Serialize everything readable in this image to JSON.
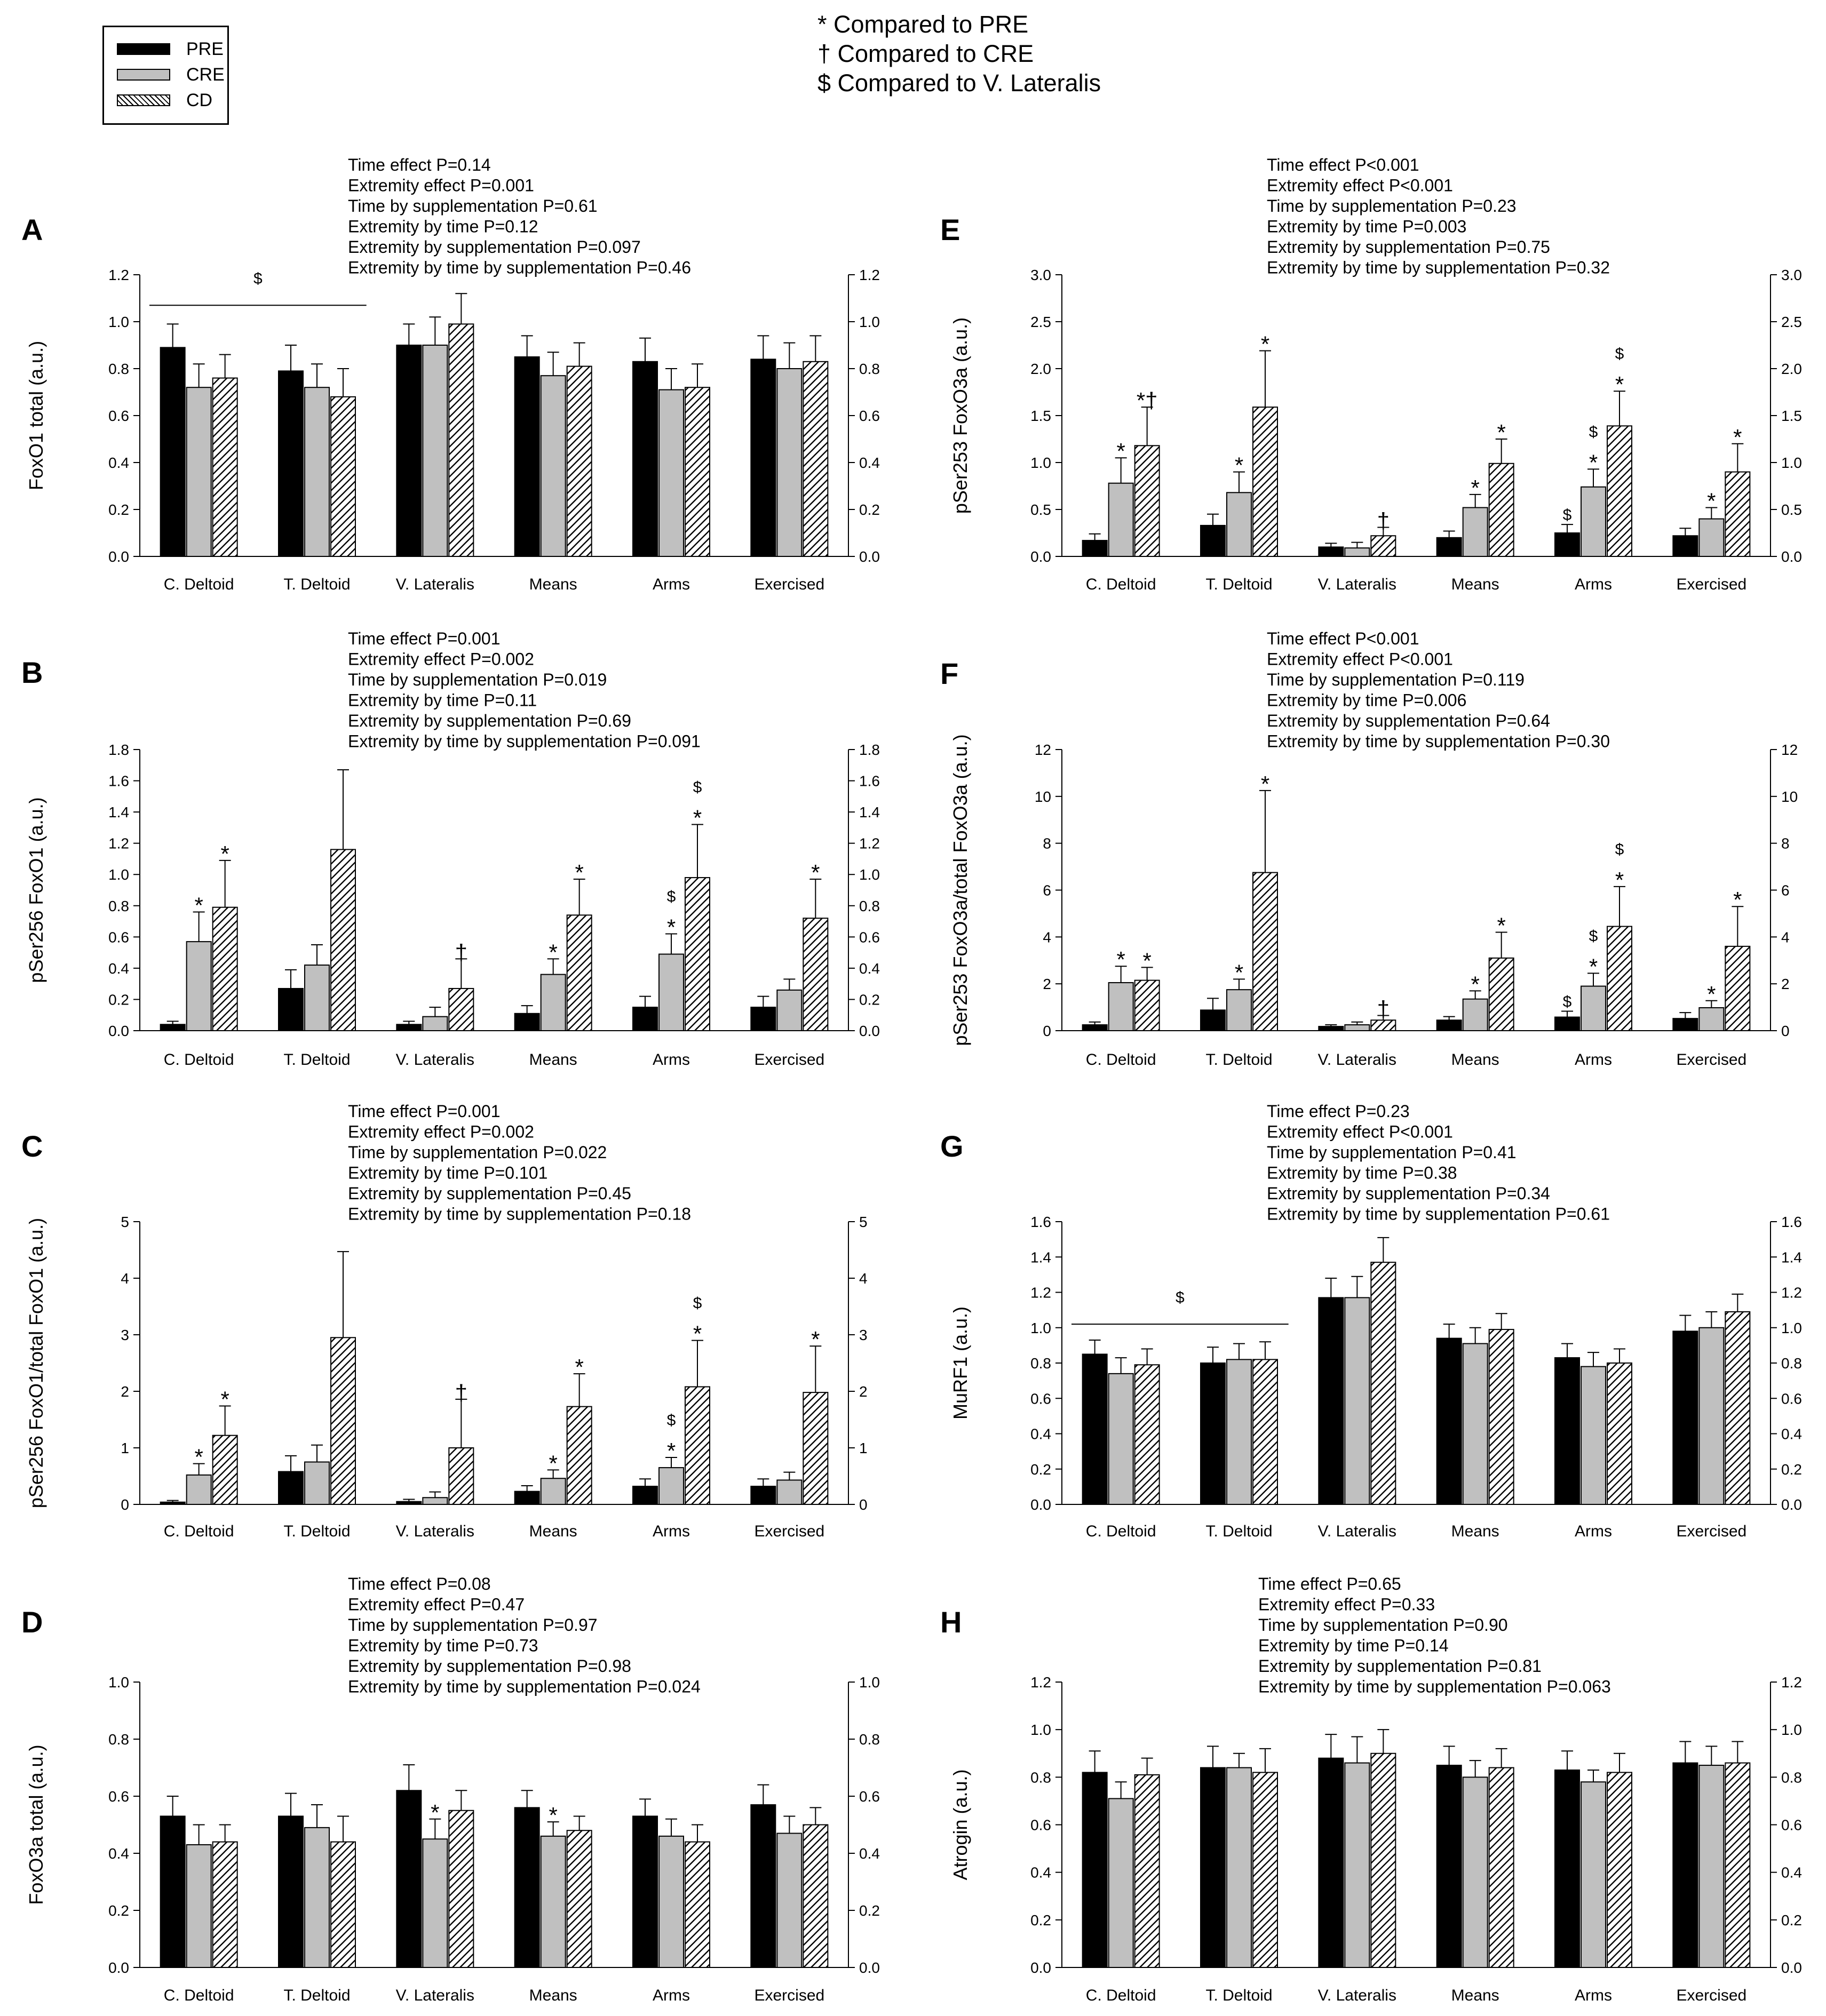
{
  "legend": {
    "items": [
      {
        "label": "PRE",
        "color": "#000000"
      },
      {
        "label": "CRE",
        "color": "#c0c0c0"
      },
      {
        "label": "CD",
        "color": "hatched"
      }
    ]
  },
  "notes": [
    "* Compared to PRE",
    "† Compared to CRE",
    "$ Compared to V. Lateralis"
  ],
  "chart_data": [
    {
      "panel": "A",
      "type": "bar",
      "ylabel": "FoxO1 total (a.u.)",
      "ylim": [
        0,
        1.2
      ],
      "ticks": [
        "0.0",
        "0.2",
        "0.4",
        "0.6",
        "0.8",
        "1.0",
        "1.2"
      ],
      "categories": [
        "C. Deltoid",
        "T. Deltoid",
        "V. Lateralis",
        "Means",
        "Arms",
        "Exercised"
      ],
      "stats": [
        "Time effect P=0.14",
        "Extremity effect P=0.001",
        "Time by supplementation P=0.61",
        "Extremity by time P=0.12",
        "Extremity by supplementation P=0.097",
        "Extremity by time by supplementation P=0.46"
      ],
      "series": [
        {
          "name": "PRE",
          "values": [
            0.89,
            0.79,
            0.9,
            0.85,
            0.83,
            0.84
          ],
          "errors": [
            0.1,
            0.11,
            0.09,
            0.09,
            0.1,
            0.1
          ]
        },
        {
          "name": "CRE",
          "values": [
            0.72,
            0.72,
            0.9,
            0.77,
            0.71,
            0.8
          ],
          "errors": [
            0.1,
            0.1,
            0.12,
            0.1,
            0.09,
            0.11
          ]
        },
        {
          "name": "CD",
          "values": [
            0.76,
            0.68,
            0.99,
            0.81,
            0.72,
            0.83
          ],
          "errors": [
            0.1,
            0.12,
            0.13,
            0.1,
            0.1,
            0.11
          ]
        }
      ],
      "annotations": [],
      "bracket": {
        "from": 0,
        "to": 1,
        "label": "$",
        "level": 1.07
      }
    },
    {
      "panel": "B",
      "type": "bar",
      "ylabel": "pSer256 FoxO1 (a.u.)",
      "ylim": [
        0,
        1.8
      ],
      "ticks": [
        "0.0",
        "0.2",
        "0.4",
        "0.6",
        "0.8",
        "1.0",
        "1.2",
        "1.4",
        "1.6",
        "1.8"
      ],
      "categories": [
        "C. Deltoid",
        "T. Deltoid",
        "V. Lateralis",
        "Means",
        "Arms",
        "Exercised"
      ],
      "stats": [
        "Time effect P=0.001",
        "Extremity effect P=0.002",
        "Time by supplementation P=0.019",
        "Extremity by time P=0.11",
        "Extremity by supplementation P=0.69",
        "Extremity by time by supplementation P=0.091"
      ],
      "series": [
        {
          "name": "PRE",
          "values": [
            0.04,
            0.27,
            0.04,
            0.11,
            0.15,
            0.15
          ],
          "errors": [
            0.02,
            0.12,
            0.02,
            0.05,
            0.07,
            0.07
          ]
        },
        {
          "name": "CRE",
          "values": [
            0.57,
            0.42,
            0.09,
            0.36,
            0.49,
            0.26
          ],
          "errors": [
            0.19,
            0.13,
            0.06,
            0.1,
            0.13,
            0.07
          ]
        },
        {
          "name": "CD",
          "values": [
            0.79,
            1.16,
            0.27,
            0.74,
            0.98,
            0.72
          ],
          "errors": [
            0.3,
            0.51,
            0.19,
            0.23,
            0.34,
            0.25
          ]
        }
      ],
      "annotations": [
        {
          "cat": 0,
          "series": 1,
          "labels": [
            "*"
          ]
        },
        {
          "cat": 0,
          "series": 2,
          "labels": [
            "*"
          ]
        },
        {
          "cat": 2,
          "series": 2,
          "labels": [
            "†"
          ]
        },
        {
          "cat": 3,
          "series": 1,
          "labels": [
            "*"
          ]
        },
        {
          "cat": 3,
          "series": 2,
          "labels": [
            "*"
          ]
        },
        {
          "cat": 4,
          "series": 1,
          "labels": [
            "*",
            "$"
          ]
        },
        {
          "cat": 4,
          "series": 2,
          "labels": [
            "*",
            "$"
          ]
        },
        {
          "cat": 5,
          "series": 2,
          "labels": [
            "*"
          ]
        }
      ]
    },
    {
      "panel": "C",
      "type": "bar",
      "ylabel": "pSer256 FoxO1/total FoxO1 (a.u.)",
      "ylim": [
        0,
        5
      ],
      "ticks": [
        "0",
        "1",
        "2",
        "3",
        "4",
        "5"
      ],
      "categories": [
        "C. Deltoid",
        "T. Deltoid",
        "V. Lateralis",
        "Means",
        "Arms",
        "Exercised"
      ],
      "stats": [
        "Time effect P=0.001",
        "Extremity effect P=0.002",
        "Time by supplementation P=0.022",
        "Extremity by time P=0.101",
        "Extremity by supplementation P=0.45",
        "Extremity by time by supplementation P=0.18"
      ],
      "series": [
        {
          "name": "PRE",
          "values": [
            0.04,
            0.58,
            0.05,
            0.23,
            0.32,
            0.32
          ],
          "errors": [
            0.03,
            0.28,
            0.04,
            0.1,
            0.13,
            0.13
          ]
        },
        {
          "name": "CRE",
          "values": [
            0.52,
            0.75,
            0.12,
            0.46,
            0.65,
            0.43
          ],
          "errors": [
            0.2,
            0.3,
            0.1,
            0.15,
            0.18,
            0.14
          ]
        },
        {
          "name": "CD",
          "values": [
            1.22,
            2.95,
            1.0,
            1.73,
            2.08,
            1.98
          ],
          "errors": [
            0.52,
            1.52,
            0.86,
            0.58,
            0.82,
            0.82
          ]
        }
      ],
      "annotations": [
        {
          "cat": 0,
          "series": 1,
          "labels": [
            "*"
          ]
        },
        {
          "cat": 0,
          "series": 2,
          "labels": [
            "*"
          ]
        },
        {
          "cat": 2,
          "series": 2,
          "labels": [
            "†"
          ]
        },
        {
          "cat": 3,
          "series": 1,
          "labels": [
            "*"
          ]
        },
        {
          "cat": 3,
          "series": 2,
          "labels": [
            "*"
          ]
        },
        {
          "cat": 4,
          "series": 1,
          "labels": [
            "*",
            "$"
          ]
        },
        {
          "cat": 4,
          "series": 2,
          "labels": [
            "*",
            "$"
          ]
        },
        {
          "cat": 5,
          "series": 2,
          "labels": [
            "*"
          ]
        }
      ]
    },
    {
      "panel": "D",
      "type": "bar",
      "ylabel": "FoxO3a total (a.u.)",
      "ylim": [
        0,
        1.0
      ],
      "ticks": [
        "0.0",
        "0.2",
        "0.4",
        "0.6",
        "0.8",
        "1.0"
      ],
      "categories": [
        "C. Deltoid",
        "T. Deltoid",
        "V. Lateralis",
        "Means",
        "Arms",
        "Exercised"
      ],
      "stats": [
        "Time effect P=0.08",
        "Extremity effect P=0.47",
        "Time by supplementation P=0.97",
        "Extremity by time P=0.73",
        "Extremity by supplementation P=0.98",
        "Extremity by time by supplementation P=0.024"
      ],
      "series": [
        {
          "name": "PRE",
          "values": [
            0.53,
            0.53,
            0.62,
            0.56,
            0.53,
            0.57
          ],
          "errors": [
            0.07,
            0.08,
            0.09,
            0.06,
            0.06,
            0.07
          ]
        },
        {
          "name": "CRE",
          "values": [
            0.43,
            0.49,
            0.45,
            0.46,
            0.46,
            0.47
          ],
          "errors": [
            0.07,
            0.08,
            0.07,
            0.05,
            0.06,
            0.06
          ]
        },
        {
          "name": "CD",
          "values": [
            0.44,
            0.44,
            0.55,
            0.48,
            0.44,
            0.5
          ],
          "errors": [
            0.06,
            0.09,
            0.07,
            0.05,
            0.06,
            0.06
          ]
        }
      ],
      "annotations": [
        {
          "cat": 2,
          "series": 1,
          "labels": [
            "*"
          ]
        },
        {
          "cat": 3,
          "series": 1,
          "labels": [
            "*"
          ]
        }
      ]
    },
    {
      "panel": "E",
      "type": "bar",
      "ylabel": "pSer253 FoxO3a (a.u.)",
      "ylim": [
        0,
        3.0
      ],
      "ticks": [
        "0.0",
        "0.5",
        "1.0",
        "1.5",
        "2.0",
        "2.5",
        "3.0"
      ],
      "categories": [
        "C. Deltoid",
        "T. Deltoid",
        "V. Lateralis",
        "Means",
        "Arms",
        "Exercised"
      ],
      "stats": [
        "Time effect P<0.001",
        "Extremity effect P<0.001",
        "Time by supplementation P=0.23",
        "Extremity by time P=0.003",
        "Extremity by supplementation P=0.75",
        "Extremity by time by supplementation P=0.32"
      ],
      "series": [
        {
          "name": "PRE",
          "values": [
            0.17,
            0.33,
            0.1,
            0.2,
            0.25,
            0.22
          ],
          "errors": [
            0.07,
            0.12,
            0.04,
            0.07,
            0.09,
            0.08
          ]
        },
        {
          "name": "CRE",
          "values": [
            0.78,
            0.68,
            0.09,
            0.52,
            0.74,
            0.4
          ],
          "errors": [
            0.27,
            0.22,
            0.06,
            0.14,
            0.19,
            0.12
          ]
        },
        {
          "name": "CD",
          "values": [
            1.18,
            1.59,
            0.22,
            0.99,
            1.39,
            0.9
          ],
          "errors": [
            0.41,
            0.6,
            0.09,
            0.26,
            0.37,
            0.3
          ]
        }
      ],
      "annotations": [
        {
          "cat": 0,
          "series": 1,
          "labels": [
            "*"
          ]
        },
        {
          "cat": 0,
          "series": 2,
          "labels": [
            "*†"
          ]
        },
        {
          "cat": 1,
          "series": 1,
          "labels": [
            "*"
          ]
        },
        {
          "cat": 1,
          "series": 2,
          "labels": [
            "*"
          ]
        },
        {
          "cat": 2,
          "series": 2,
          "labels": [
            "†"
          ]
        },
        {
          "cat": 3,
          "series": 1,
          "labels": [
            "*"
          ]
        },
        {
          "cat": 3,
          "series": 2,
          "labels": [
            "*"
          ]
        },
        {
          "cat": 4,
          "series": 0,
          "labels": [
            "$"
          ]
        },
        {
          "cat": 4,
          "series": 1,
          "labels": [
            "*",
            "$"
          ]
        },
        {
          "cat": 4,
          "series": 2,
          "labels": [
            "*",
            "$"
          ]
        },
        {
          "cat": 5,
          "series": 1,
          "labels": [
            "*"
          ]
        },
        {
          "cat": 5,
          "series": 2,
          "labels": [
            "*"
          ]
        }
      ]
    },
    {
      "panel": "F",
      "type": "bar",
      "ylabel": "pSer253 FoxO3a/total FoxO3a (a.u.)",
      "ylim": [
        0,
        12
      ],
      "ticks": [
        "0",
        "2",
        "4",
        "6",
        "8",
        "10",
        "12"
      ],
      "categories": [
        "C. Deltoid",
        "T. Deltoid",
        "V. Lateralis",
        "Means",
        "Arms",
        "Exercised"
      ],
      "stats": [
        "Time effect P<0.001",
        "Extremity effect P<0.001",
        "Time by supplementation P=0.119",
        "Extremity by time P=0.006",
        "Extremity by supplementation P=0.64",
        "Extremity by time by supplementation P=0.30"
      ],
      "series": [
        {
          "name": "PRE",
          "values": [
            0.25,
            0.88,
            0.18,
            0.45,
            0.58,
            0.52
          ],
          "errors": [
            0.12,
            0.5,
            0.07,
            0.15,
            0.25,
            0.25
          ]
        },
        {
          "name": "CRE",
          "values": [
            2.05,
            1.75,
            0.25,
            1.35,
            1.9,
            0.98
          ],
          "errors": [
            0.7,
            0.45,
            0.12,
            0.35,
            0.55,
            0.3
          ]
        },
        {
          "name": "CD",
          "values": [
            2.15,
            6.75,
            0.45,
            3.1,
            4.45,
            3.6
          ],
          "errors": [
            0.55,
            3.5,
            0.2,
            1.1,
            1.7,
            1.7
          ]
        }
      ],
      "annotations": [
        {
          "cat": 0,
          "series": 1,
          "labels": [
            "*"
          ]
        },
        {
          "cat": 0,
          "series": 2,
          "labels": [
            "*"
          ]
        },
        {
          "cat": 1,
          "series": 1,
          "labels": [
            "*"
          ]
        },
        {
          "cat": 1,
          "series": 2,
          "labels": [
            "*"
          ]
        },
        {
          "cat": 2,
          "series": 2,
          "labels": [
            "†"
          ]
        },
        {
          "cat": 3,
          "series": 1,
          "labels": [
            "*"
          ]
        },
        {
          "cat": 3,
          "series": 2,
          "labels": [
            "*"
          ]
        },
        {
          "cat": 4,
          "series": 0,
          "labels": [
            "$"
          ]
        },
        {
          "cat": 4,
          "series": 1,
          "labels": [
            "*",
            "$"
          ]
        },
        {
          "cat": 4,
          "series": 2,
          "labels": [
            "*",
            "$"
          ]
        },
        {
          "cat": 5,
          "series": 1,
          "labels": [
            "*"
          ]
        },
        {
          "cat": 5,
          "series": 2,
          "labels": [
            "*"
          ]
        }
      ]
    },
    {
      "panel": "G",
      "type": "bar",
      "ylabel": "MuRF1 (a.u.)",
      "ylim": [
        0,
        1.6
      ],
      "ticks": [
        "0.0",
        "0.2",
        "0.4",
        "0.6",
        "0.8",
        "1.0",
        "1.2",
        "1.4",
        "1.6"
      ],
      "categories": [
        "C. Deltoid",
        "T. Deltoid",
        "V. Lateralis",
        "Means",
        "Arms",
        "Exercised"
      ],
      "stats": [
        "Time effect P=0.23",
        "Extremity effect P<0.001",
        "Time by supplementation P=0.41",
        "Extremity by time P=0.38",
        "Extremity by supplementation P=0.34",
        "Extremity by time by supplementation P=0.61"
      ],
      "series": [
        {
          "name": "PRE",
          "values": [
            0.85,
            0.8,
            1.17,
            0.94,
            0.83,
            0.98
          ],
          "errors": [
            0.08,
            0.09,
            0.11,
            0.08,
            0.08,
            0.09
          ]
        },
        {
          "name": "CRE",
          "values": [
            0.74,
            0.82,
            1.17,
            0.91,
            0.78,
            1.0
          ],
          "errors": [
            0.09,
            0.09,
            0.12,
            0.09,
            0.08,
            0.09
          ]
        },
        {
          "name": "CD",
          "values": [
            0.79,
            0.82,
            1.37,
            0.99,
            0.8,
            1.09
          ],
          "errors": [
            0.09,
            0.1,
            0.14,
            0.09,
            0.08,
            0.1
          ]
        }
      ],
      "annotations": [],
      "bracket": {
        "from": 0,
        "to": 1,
        "label": "$",
        "level": 1.02
      }
    },
    {
      "panel": "H",
      "type": "bar",
      "ylabel": "Atrogin (a.u.)",
      "ylim": [
        0,
        1.2
      ],
      "ticks": [
        "0.0",
        "0.2",
        "0.4",
        "0.6",
        "0.8",
        "1.0",
        "1.2"
      ],
      "categories": [
        "C. Deltoid",
        "T. Deltoid",
        "V. Lateralis",
        "Means",
        "Arms",
        "Exercised"
      ],
      "stats": [
        "Time effect P=0.65",
        "Extremity effect P=0.33",
        "Time by supplementation P=0.90",
        "Extremity by time P=0.14",
        "Extremity by supplementation P=0.81",
        "Extremity by time by supplementation P=0.063"
      ],
      "series": [
        {
          "name": "PRE",
          "values": [
            0.82,
            0.84,
            0.88,
            0.85,
            0.83,
            0.86
          ],
          "errors": [
            0.09,
            0.09,
            0.1,
            0.08,
            0.08,
            0.09
          ]
        },
        {
          "name": "CRE",
          "values": [
            0.71,
            0.84,
            0.86,
            0.8,
            0.78,
            0.85
          ],
          "errors": [
            0.07,
            0.06,
            0.11,
            0.07,
            0.05,
            0.08
          ]
        },
        {
          "name": "CD",
          "values": [
            0.81,
            0.82,
            0.9,
            0.84,
            0.82,
            0.86
          ],
          "errors": [
            0.07,
            0.1,
            0.1,
            0.08,
            0.08,
            0.09
          ]
        }
      ],
      "annotations": []
    }
  ]
}
